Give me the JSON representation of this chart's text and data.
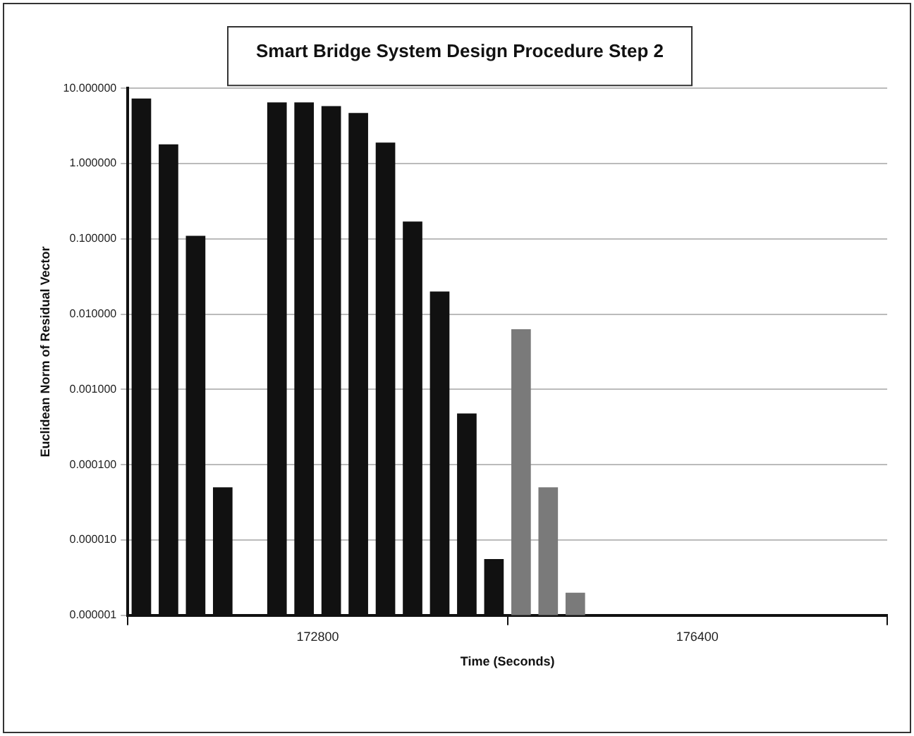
{
  "chart_data": {
    "type": "bar",
    "title": "Smart Bridge System Design Procedure Step 2",
    "xlabel": "Time (Seconds)",
    "ylabel": "Euclidean Norm of Residual Vector",
    "categories": [
      "172800",
      "176400"
    ],
    "log": "y",
    "grid": "y",
    "ylim": [
      1e-06,
      10
    ],
    "yticks": [
      {
        "value": 10,
        "label": "10.000000"
      },
      {
        "value": 1,
        "label": "1.000000"
      },
      {
        "value": 0.1,
        "label": "0.100000"
      },
      {
        "value": 0.01,
        "label": "0.010000"
      },
      {
        "value": 0.001,
        "label": "0.001000"
      },
      {
        "value": 0.0001,
        "label": "0.000100"
      },
      {
        "value": 1e-05,
        "label": "0.000010"
      },
      {
        "value": 1e-06,
        "label": "0.000001"
      }
    ],
    "series": [
      {
        "colors": [
          "#111111",
          "#7a7a7a"
        ],
        "values": [
          7.3,
          0.0063
        ]
      },
      {
        "colors": [
          "#111111",
          "#7a7a7a"
        ],
        "values": [
          1.8,
          5e-05
        ]
      },
      {
        "colors": [
          "#111111",
          "#7a7a7a"
        ],
        "values": [
          0.11,
          2e-06
        ]
      },
      {
        "colors": [
          "#111111",
          "#7a7a7a"
        ],
        "values": [
          5e-05,
          null
        ]
      },
      {
        "colors": [
          "#111111",
          "#7a7a7a"
        ],
        "values": [
          null,
          null
        ]
      },
      {
        "colors": [
          "#111111",
          "#7a7a7a"
        ],
        "values": [
          6.5,
          null
        ]
      },
      {
        "colors": [
          "#111111",
          "#7a7a7a"
        ],
        "values": [
          6.5,
          null
        ]
      },
      {
        "colors": [
          "#111111",
          "#7a7a7a"
        ],
        "values": [
          5.8,
          null
        ]
      },
      {
        "colors": [
          "#111111",
          "#7a7a7a"
        ],
        "values": [
          4.7,
          null
        ]
      },
      {
        "colors": [
          "#111111",
          "#7a7a7a"
        ],
        "values": [
          1.9,
          null
        ]
      },
      {
        "colors": [
          "#111111",
          "#7a7a7a"
        ],
        "values": [
          0.17,
          null
        ]
      },
      {
        "colors": [
          "#111111",
          "#7a7a7a"
        ],
        "values": [
          0.02,
          null
        ]
      },
      {
        "colors": [
          "#111111",
          "#7a7a7a"
        ],
        "values": [
          0.00048,
          null
        ]
      },
      {
        "colors": [
          "#111111",
          "#7a7a7a"
        ],
        "values": [
          5.6e-06,
          null
        ]
      }
    ]
  }
}
